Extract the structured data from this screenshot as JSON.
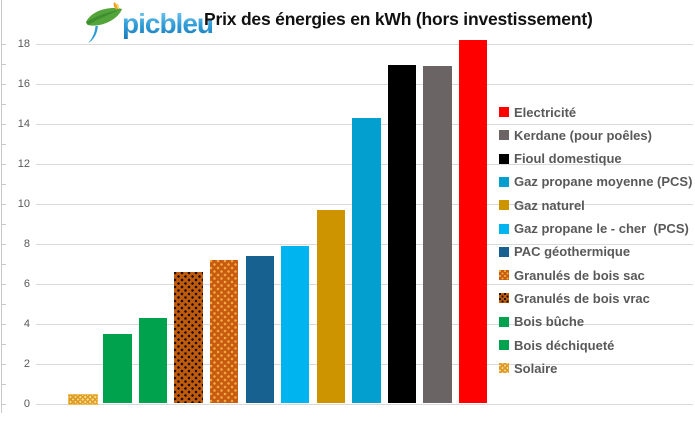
{
  "header": {
    "logo_text": "picbleu",
    "title": "Prix des énergies en kWh (hors investissement)"
  },
  "chart_data": {
    "type": "bar",
    "title": "Prix des énergies en kWh (hors investissement)",
    "xlabel": "",
    "ylabel": "",
    "ylim": [
      0,
      18
    ],
    "ytick_step": 2,
    "ytick_labels": [
      "0",
      "2",
      "4",
      "6",
      "8",
      "10",
      "12",
      "14",
      "16",
      "18"
    ],
    "grid": true,
    "legend_position": "right",
    "legend_order": "descending by value (reverse of bar order)",
    "bar_order": "ascending left to right",
    "series": [
      {
        "label": "Solaire",
        "value": 0.5,
        "color": "#FFDD7E",
        "pattern": "weave",
        "pattern_color": "#DD9A2B"
      },
      {
        "label": "Bois déchiqueté",
        "value": 3.5,
        "color": "#00A24E",
        "pattern": "solid"
      },
      {
        "label": "Bois bûche",
        "value": 4.3,
        "color": "#00A24E",
        "pattern": "solid"
      },
      {
        "label": "Granulés de bois vrac",
        "value": 6.6,
        "color": "#BF5B0F",
        "pattern": "dots",
        "pattern_color": "#1C0E02"
      },
      {
        "label": "Granulés de bois sac",
        "value": 7.2,
        "color": "#C75B11",
        "pattern": "dots",
        "pattern_color": "#F2A93C"
      },
      {
        "label": "PAC géothermique",
        "value": 7.4,
        "color": "#16618F",
        "pattern": "solid"
      },
      {
        "label": "Gaz propane le - cher  (PCS)",
        "value": 7.9,
        "color": "#00B4EF",
        "pattern": "solid"
      },
      {
        "label": "Gaz naturel",
        "value": 9.7,
        "color": "#CD9400",
        "pattern": "solid"
      },
      {
        "label": "Gaz propane moyenne (PCS)",
        "value": 14.3,
        "color": "#039FCE",
        "pattern": "solid"
      },
      {
        "label": "Fioul domestique",
        "value": 16.95,
        "color": "#000000",
        "pattern": "solid"
      },
      {
        "label": "Kerdane (pour poêles)",
        "value": 16.9,
        "color": "#6A6464",
        "pattern": "solid"
      },
      {
        "label": "Electricité",
        "value": 18.2,
        "color": "#FE0000",
        "pattern": "solid"
      }
    ]
  }
}
